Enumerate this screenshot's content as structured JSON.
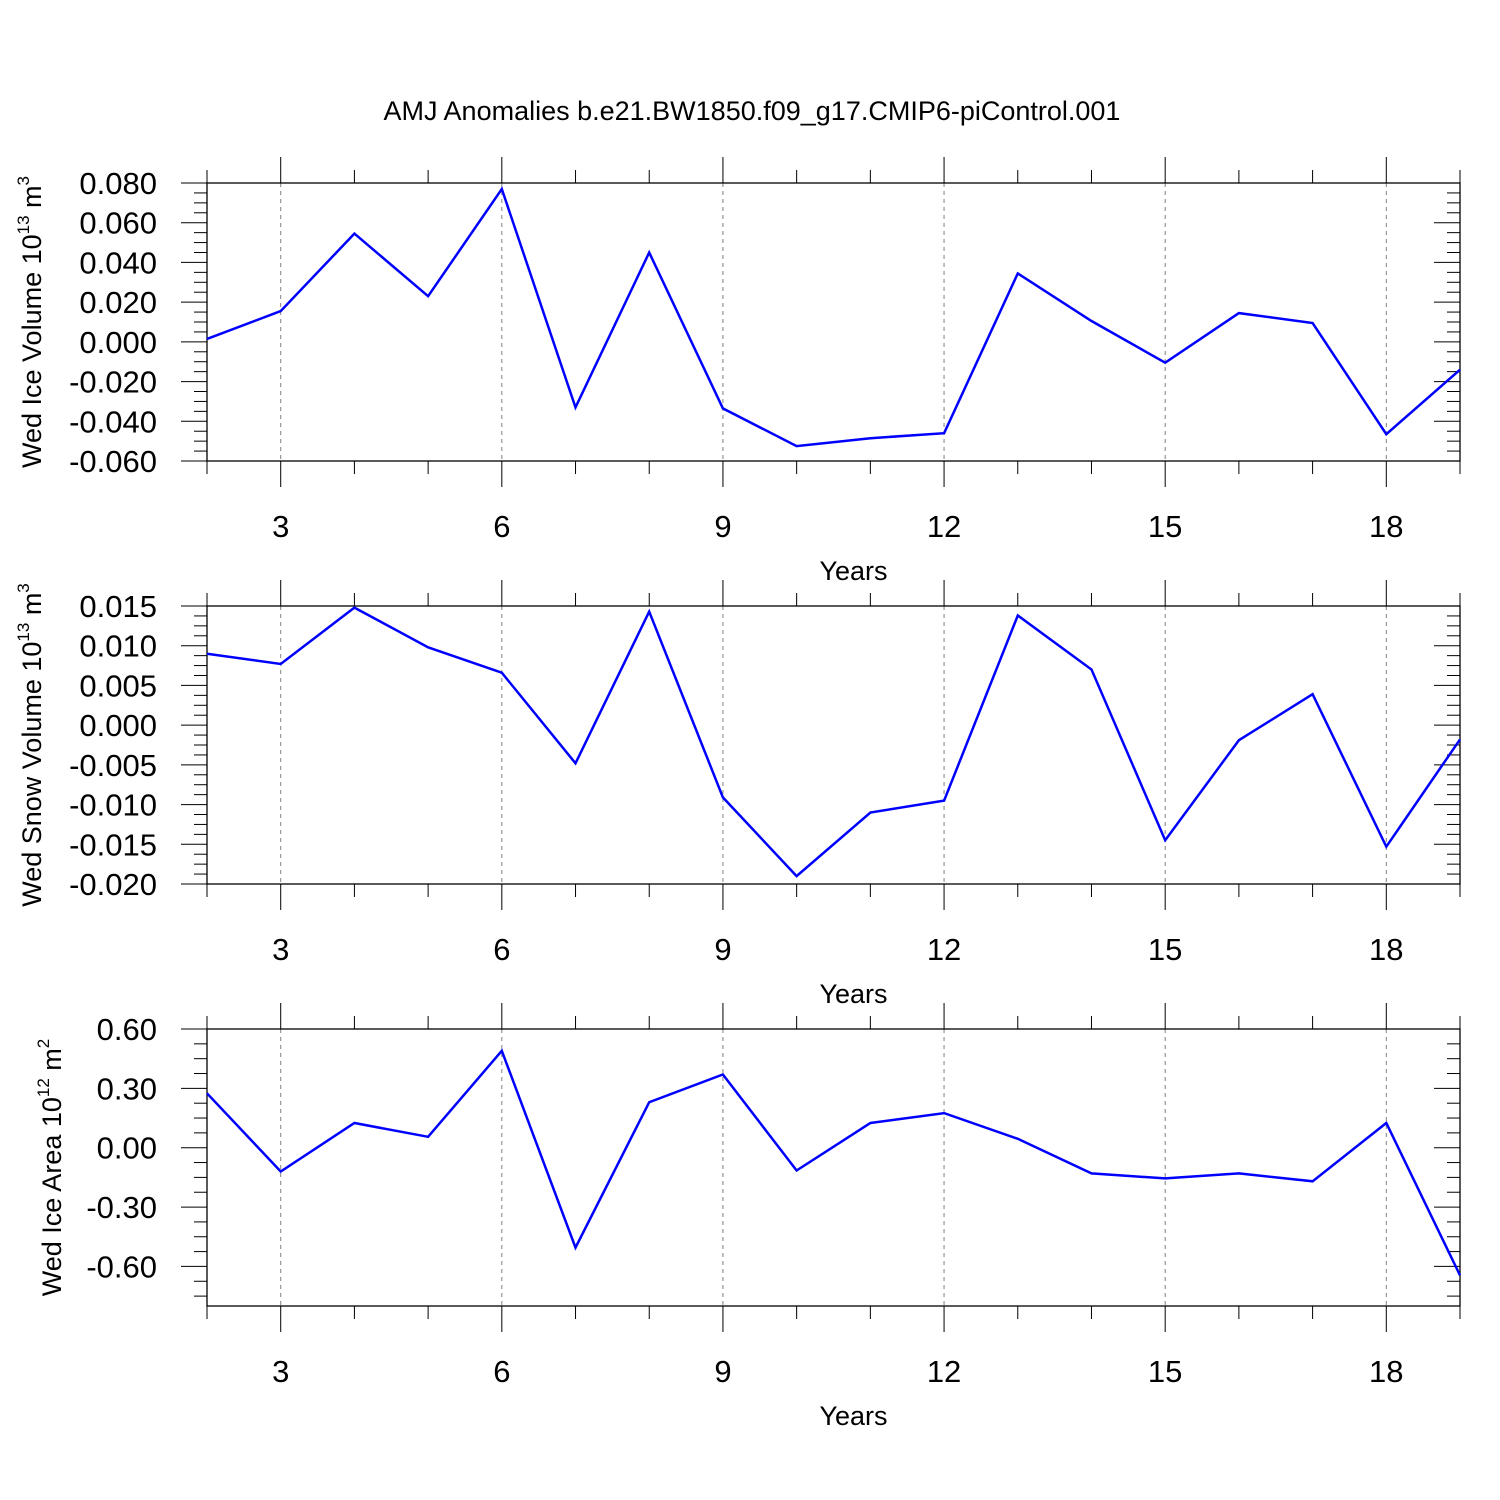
{
  "title": "AMJ Anomalies b.e21.BW1850.f09_g17.CMIP6-piControl.001",
  "colors": {
    "line": "#0000ff",
    "axis": "#000000",
    "grid": "#808080"
  },
  "chart_data": [
    {
      "type": "line",
      "ylabel_main": "Wed Ice Volume 10",
      "ylabel_exp": "13",
      "ylabel_unit": " m",
      "ylabel_unit_exp": "3",
      "xlabel": "Years",
      "xlim": [
        2,
        19
      ],
      "ylim": [
        -0.06,
        0.08
      ],
      "yticks": [
        -0.06,
        -0.04,
        -0.02,
        0.0,
        0.02,
        0.04,
        0.06,
        0.08
      ],
      "ytick_labels": [
        "-0.060",
        "-0.040",
        "-0.020",
        "0.000",
        "0.020",
        "0.040",
        "0.060",
        "0.080"
      ],
      "xticks": [
        3,
        6,
        9,
        12,
        15,
        18
      ],
      "xtick_labels": [
        "3",
        "6",
        "9",
        "12",
        "15",
        "18"
      ],
      "grid_x": true,
      "x": [
        2,
        3,
        4,
        5,
        6,
        7,
        8,
        9,
        10,
        11,
        12,
        13,
        14,
        15,
        16,
        17,
        18,
        19
      ],
      "values": [
        0.0015,
        0.0155,
        0.0545,
        0.023,
        0.077,
        -0.033,
        0.045,
        -0.0335,
        -0.0525,
        -0.0485,
        -0.046,
        0.0345,
        0.0105,
        -0.0105,
        0.0145,
        0.0095,
        -0.0465,
        -0.014
      ]
    },
    {
      "type": "line",
      "ylabel_main": "Wed Snow Volume 10",
      "ylabel_exp": "13",
      "ylabel_unit": " m",
      "ylabel_unit_exp": "3",
      "xlabel": "Years",
      "xlim": [
        2,
        19
      ],
      "ylim": [
        -0.02,
        0.015
      ],
      "yticks": [
        -0.02,
        -0.015,
        -0.01,
        -0.005,
        0.0,
        0.005,
        0.01,
        0.015
      ],
      "ytick_labels": [
        "-0.020",
        "-0.015",
        "-0.010",
        "-0.005",
        "0.000",
        "0.005",
        "0.010",
        "0.015"
      ],
      "xticks": [
        3,
        6,
        9,
        12,
        15,
        18
      ],
      "xtick_labels": [
        "3",
        "6",
        "9",
        "12",
        "15",
        "18"
      ],
      "grid_x": true,
      "x": [
        2,
        3,
        4,
        5,
        6,
        7,
        8,
        9,
        10,
        11,
        12,
        13,
        14,
        15,
        16,
        17,
        18,
        19
      ],
      "values": [
        0.009,
        0.0077,
        0.0148,
        0.0098,
        0.0066,
        -0.0048,
        0.0143,
        -0.0091,
        -0.019,
        -0.011,
        -0.0095,
        0.0138,
        0.007,
        -0.0145,
        -0.0019,
        0.0039,
        -0.0153,
        -0.0018
      ]
    },
    {
      "type": "line",
      "ylabel_main": "Wed Ice Area 10",
      "ylabel_exp": "12",
      "ylabel_unit": " m",
      "ylabel_unit_exp": "2",
      "xlabel": "Years",
      "xlim": [
        2,
        19
      ],
      "ylim": [
        -0.8,
        0.6
      ],
      "yticks": [
        -0.6,
        -0.3,
        0.0,
        0.3,
        0.6
      ],
      "ytick_labels": [
        "-0.60",
        "-0.30",
        "0.00",
        "0.30",
        "0.60"
      ],
      "xticks": [
        3,
        6,
        9,
        12,
        15,
        18
      ],
      "xtick_labels": [
        "3",
        "6",
        "9",
        "12",
        "15",
        "18"
      ],
      "grid_x": true,
      "x": [
        2,
        3,
        4,
        5,
        6,
        7,
        8,
        9,
        10,
        11,
        12,
        13,
        14,
        15,
        16,
        17,
        18,
        19
      ],
      "values": [
        0.275,
        -0.12,
        0.125,
        0.055,
        0.49,
        -0.505,
        0.23,
        0.37,
        -0.115,
        0.125,
        0.175,
        0.045,
        -0.13,
        -0.155,
        -0.13,
        -0.17,
        0.125,
        -0.645
      ]
    }
  ]
}
